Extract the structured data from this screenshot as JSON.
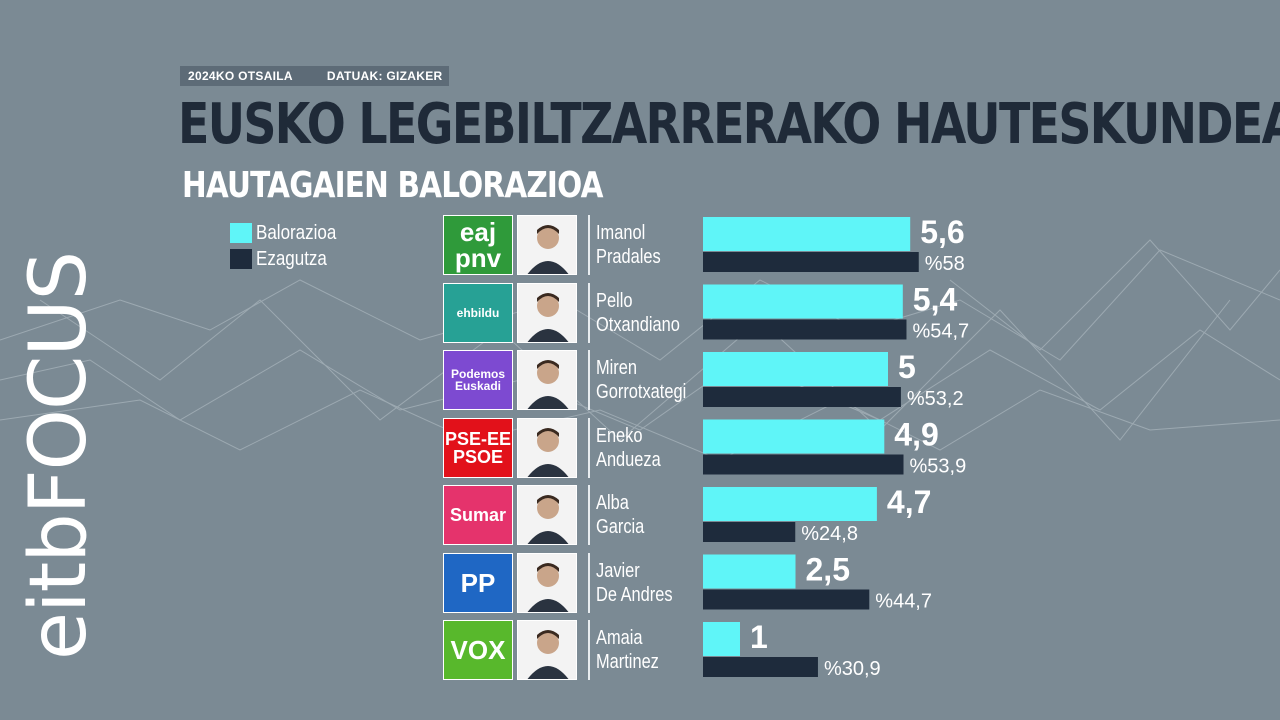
{
  "header": {
    "date_tag": "2024KO OTSAILA",
    "source_tag": "DATUAK: GIZAKER",
    "title": "EUSKO LEGEBILTZARRERAKO HAUTESKUNDEAK",
    "subtitle": "HAUTAGAIEN BALORAZIOA"
  },
  "brand": {
    "logo_text": "eitbFOCUS"
  },
  "legend": [
    {
      "label": "Balorazioa",
      "color": "#5ff5f8"
    },
    {
      "label": "Ezagutza",
      "color": "#1e2b3c"
    }
  ],
  "candidates": [
    {
      "party_logo": "EAJ-PNV logo",
      "logo_line1": "eaj",
      "logo_line2": "pnv",
      "logo_bg": "#2f9a3a",
      "first_name": "Imanol",
      "last_name": "Pradales",
      "rating_label": "5,6",
      "recognition_label": "%58"
    },
    {
      "party_logo": "EH Bildu logo",
      "logo_line1": "ehbildu",
      "logo_line2": "",
      "logo_bg": "#27a195",
      "first_name": "Pello",
      "last_name": "Otxandiano",
      "rating_label": "5,4",
      "recognition_label": "%54,7"
    },
    {
      "party_logo": "Podemos Euskadi logo",
      "logo_line1": "Podemos",
      "logo_line2": "Euskadi",
      "logo_bg": "#7d4ad1",
      "first_name": "Miren",
      "last_name": "Gorrotxategi",
      "rating_label": "5",
      "recognition_label": "%53,2"
    },
    {
      "party_logo": "PSE-EE PSOE logo",
      "logo_line1": "PSE-EE",
      "logo_line2": "PSOE",
      "logo_bg": "#e2111a",
      "first_name": "Eneko",
      "last_name": "Andueza",
      "rating_label": "4,9",
      "recognition_label": "%53,9"
    },
    {
      "party_logo": "Sumar logo",
      "logo_line1": "Sumar",
      "logo_line2": "",
      "logo_bg": "#e5336c",
      "first_name": "Alba",
      "last_name": "Garcia",
      "rating_label": "4,7",
      "recognition_label": "%24,8"
    },
    {
      "party_logo": "PP logo",
      "logo_line1": "PP",
      "logo_line2": "",
      "logo_bg": "#1f67c4",
      "first_name": "Javier",
      "last_name": "De Andres",
      "rating_label": "2,5",
      "recognition_label": "%44,7"
    },
    {
      "party_logo": "VOX logo",
      "logo_line1": "VOX",
      "logo_line2": "",
      "logo_bg": "#58b82c",
      "first_name": "Amaia",
      "last_name": "Martinez",
      "rating_label": "1",
      "recognition_label": "%30,9"
    }
  ],
  "chart_data": {
    "type": "bar",
    "orientation": "horizontal",
    "title": "HAUTAGAIEN BALORAZIOA",
    "categories": [
      "Imanol Pradales",
      "Pello Otxandiano",
      "Miren Gorrotxategi",
      "Eneko Andueza",
      "Alba Garcia",
      "Javier De Andres",
      "Amaia Martinez"
    ],
    "series": [
      {
        "name": "Balorazioa",
        "values": [
          5.6,
          5.4,
          5.0,
          4.9,
          4.7,
          2.5,
          1.0
        ]
      },
      {
        "name": "Ezagutza",
        "values": [
          58,
          54.7,
          53.2,
          53.9,
          24.8,
          44.7,
          30.9
        ]
      }
    ],
    "rating_scale_max": 10,
    "recognition_scale_max": 100,
    "legend_position": "top-left",
    "grid": false
  }
}
